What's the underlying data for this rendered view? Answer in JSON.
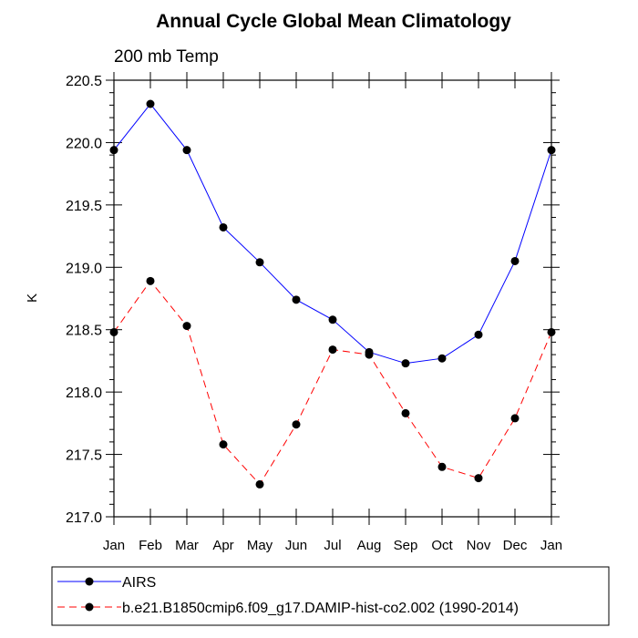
{
  "chart_data": {
    "type": "line",
    "title": "Annual Cycle Global Mean Climatology",
    "subtitle": "200 mb Temp",
    "ylabel": "K",
    "xlabel": "",
    "categories": [
      "Jan",
      "Feb",
      "Mar",
      "Apr",
      "May",
      "Jun",
      "Jul",
      "Aug",
      "Sep",
      "Oct",
      "Nov",
      "Dec",
      "Jan"
    ],
    "ylim": [
      217.0,
      220.5
    ],
    "yticks": [
      "217.0",
      "217.5",
      "218.0",
      "218.5",
      "219.0",
      "219.5",
      "220.0",
      "220.5"
    ],
    "series": [
      {
        "name": "AIRS",
        "color": "#0000ff",
        "dash": "solid",
        "values": [
          219.94,
          220.31,
          219.94,
          219.32,
          219.04,
          218.74,
          218.58,
          218.32,
          218.23,
          218.27,
          218.46,
          219.05,
          219.94
        ]
      },
      {
        "name": "b.e21.B1850cmip6.f09_g17.DAMIP-hist-co2.002 (1990-2014)",
        "color": "#ff0000",
        "dash": "dashed",
        "values": [
          218.48,
          218.89,
          218.53,
          217.58,
          217.26,
          217.74,
          218.34,
          218.3,
          217.83,
          217.4,
          217.31,
          217.79,
          218.48
        ]
      }
    ]
  }
}
